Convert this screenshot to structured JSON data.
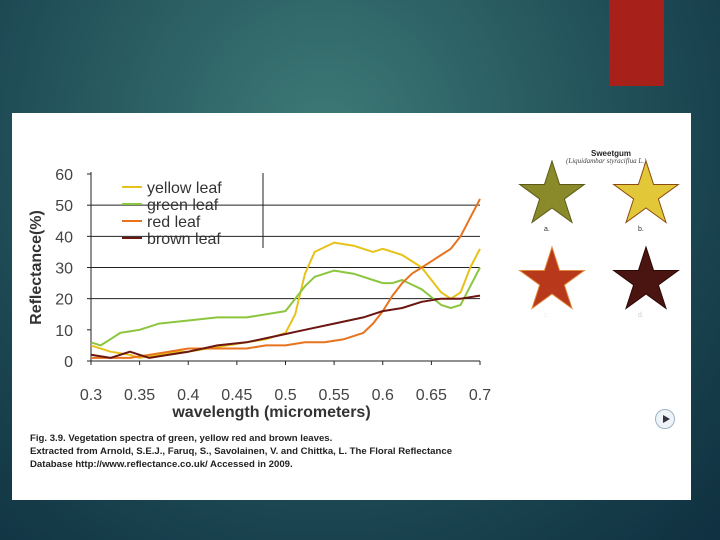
{
  "colors": {
    "background": "#1f4f58",
    "accent": "#a8201a",
    "yellow_leaf": "#e6c21a",
    "green_leaf": "#8cc63f",
    "red_leaf": "#e8731f",
    "brown_leaf": "#6b1610"
  },
  "chart_data": {
    "type": "line",
    "xlabel": "wavelength (micrometers)",
    "ylabel": "Reflectance(%)",
    "xlim": [
      0.3,
      0.7
    ],
    "ylim": [
      0,
      60
    ],
    "xticks": [
      "0.3",
      "0.35",
      "0.4",
      "0.45",
      "0.5",
      "0.55",
      "0.6",
      "0.65",
      "0.7"
    ],
    "yticks": [
      "0",
      "10",
      "20",
      "30",
      "40",
      "50",
      "60"
    ],
    "grid": "horizontal lines at 20, 30, 40, 50",
    "legend_position": "top-left",
    "series": [
      {
        "name": "yellow leaf",
        "color": "#e6c21a",
        "x": [
          0.3,
          0.32,
          0.34,
          0.35,
          0.37,
          0.39,
          0.4,
          0.42,
          0.44,
          0.46,
          0.48,
          0.5,
          0.51,
          0.52,
          0.53,
          0.55,
          0.57,
          0.59,
          0.6,
          0.62,
          0.64,
          0.66,
          0.67,
          0.68,
          0.69,
          0.7
        ],
        "y": [
          5,
          3,
          2,
          1,
          2,
          3,
          3,
          4,
          5,
          6,
          7,
          9,
          15,
          28,
          35,
          38,
          37,
          35,
          36,
          34,
          30,
          22,
          20,
          22,
          30,
          36
        ]
      },
      {
        "name": "green leaf",
        "color": "#8cc63f",
        "x": [
          0.3,
          0.31,
          0.32,
          0.33,
          0.35,
          0.37,
          0.4,
          0.43,
          0.46,
          0.48,
          0.5,
          0.51,
          0.52,
          0.53,
          0.55,
          0.57,
          0.59,
          0.6,
          0.61,
          0.62,
          0.64,
          0.66,
          0.67,
          0.68,
          0.69,
          0.7
        ],
        "y": [
          6,
          5,
          7,
          9,
          10,
          12,
          13,
          14,
          14,
          15,
          16,
          20,
          24,
          27,
          29,
          28,
          26,
          25,
          25,
          26,
          23,
          18,
          17,
          18,
          24,
          30
        ]
      },
      {
        "name": "red leaf",
        "color": "#e8731f",
        "x": [
          0.3,
          0.32,
          0.34,
          0.36,
          0.38,
          0.4,
          0.43,
          0.46,
          0.48,
          0.5,
          0.52,
          0.54,
          0.56,
          0.58,
          0.59,
          0.6,
          0.61,
          0.62,
          0.63,
          0.64,
          0.65,
          0.66,
          0.67,
          0.68,
          0.69,
          0.7
        ],
        "y": [
          1,
          1,
          1,
          2,
          3,
          4,
          4,
          4,
          5,
          5,
          6,
          6,
          7,
          9,
          12,
          16,
          21,
          25,
          28,
          30,
          32,
          34,
          36,
          40,
          46,
          52
        ]
      },
      {
        "name": "brown leaf",
        "color": "#6b1610",
        "x": [
          0.3,
          0.32,
          0.34,
          0.36,
          0.38,
          0.4,
          0.43,
          0.46,
          0.49,
          0.52,
          0.55,
          0.58,
          0.6,
          0.62,
          0.64,
          0.66,
          0.68,
          0.7
        ],
        "y": [
          2,
          1,
          3,
          1,
          2,
          3,
          5,
          6,
          8,
          10,
          12,
          14,
          16,
          17,
          19,
          20,
          20,
          21
        ]
      }
    ]
  },
  "caption": {
    "line1": "Fig. 3.9. Vegetation spectra of green, yellow red and brown leaves.",
    "line2": "Extracted from Arnold, S.E.J., Faruq, S., Savolainen, V. and Chittka, L. The Floral Reflectance",
    "line3": "Database http://www.reflectance.co.uk/ Accessed in 2009."
  },
  "leaves_panel": {
    "title": "Sweetgum",
    "subtitle": "(Liquidambar styraciflua L.)",
    "leaves": [
      {
        "label": "a.",
        "color": "#8a8a2a",
        "spot": "#5a5a18"
      },
      {
        "label": "b.",
        "color": "#e2c838",
        "spot": "#8a4a12"
      },
      {
        "label": "c.",
        "color": "#b8381c",
        "spot": "#e08a3a"
      },
      {
        "label": "d.",
        "color": "#4a1410",
        "spot": "#2a0806"
      }
    ]
  },
  "icons": {
    "play": "play-icon"
  }
}
